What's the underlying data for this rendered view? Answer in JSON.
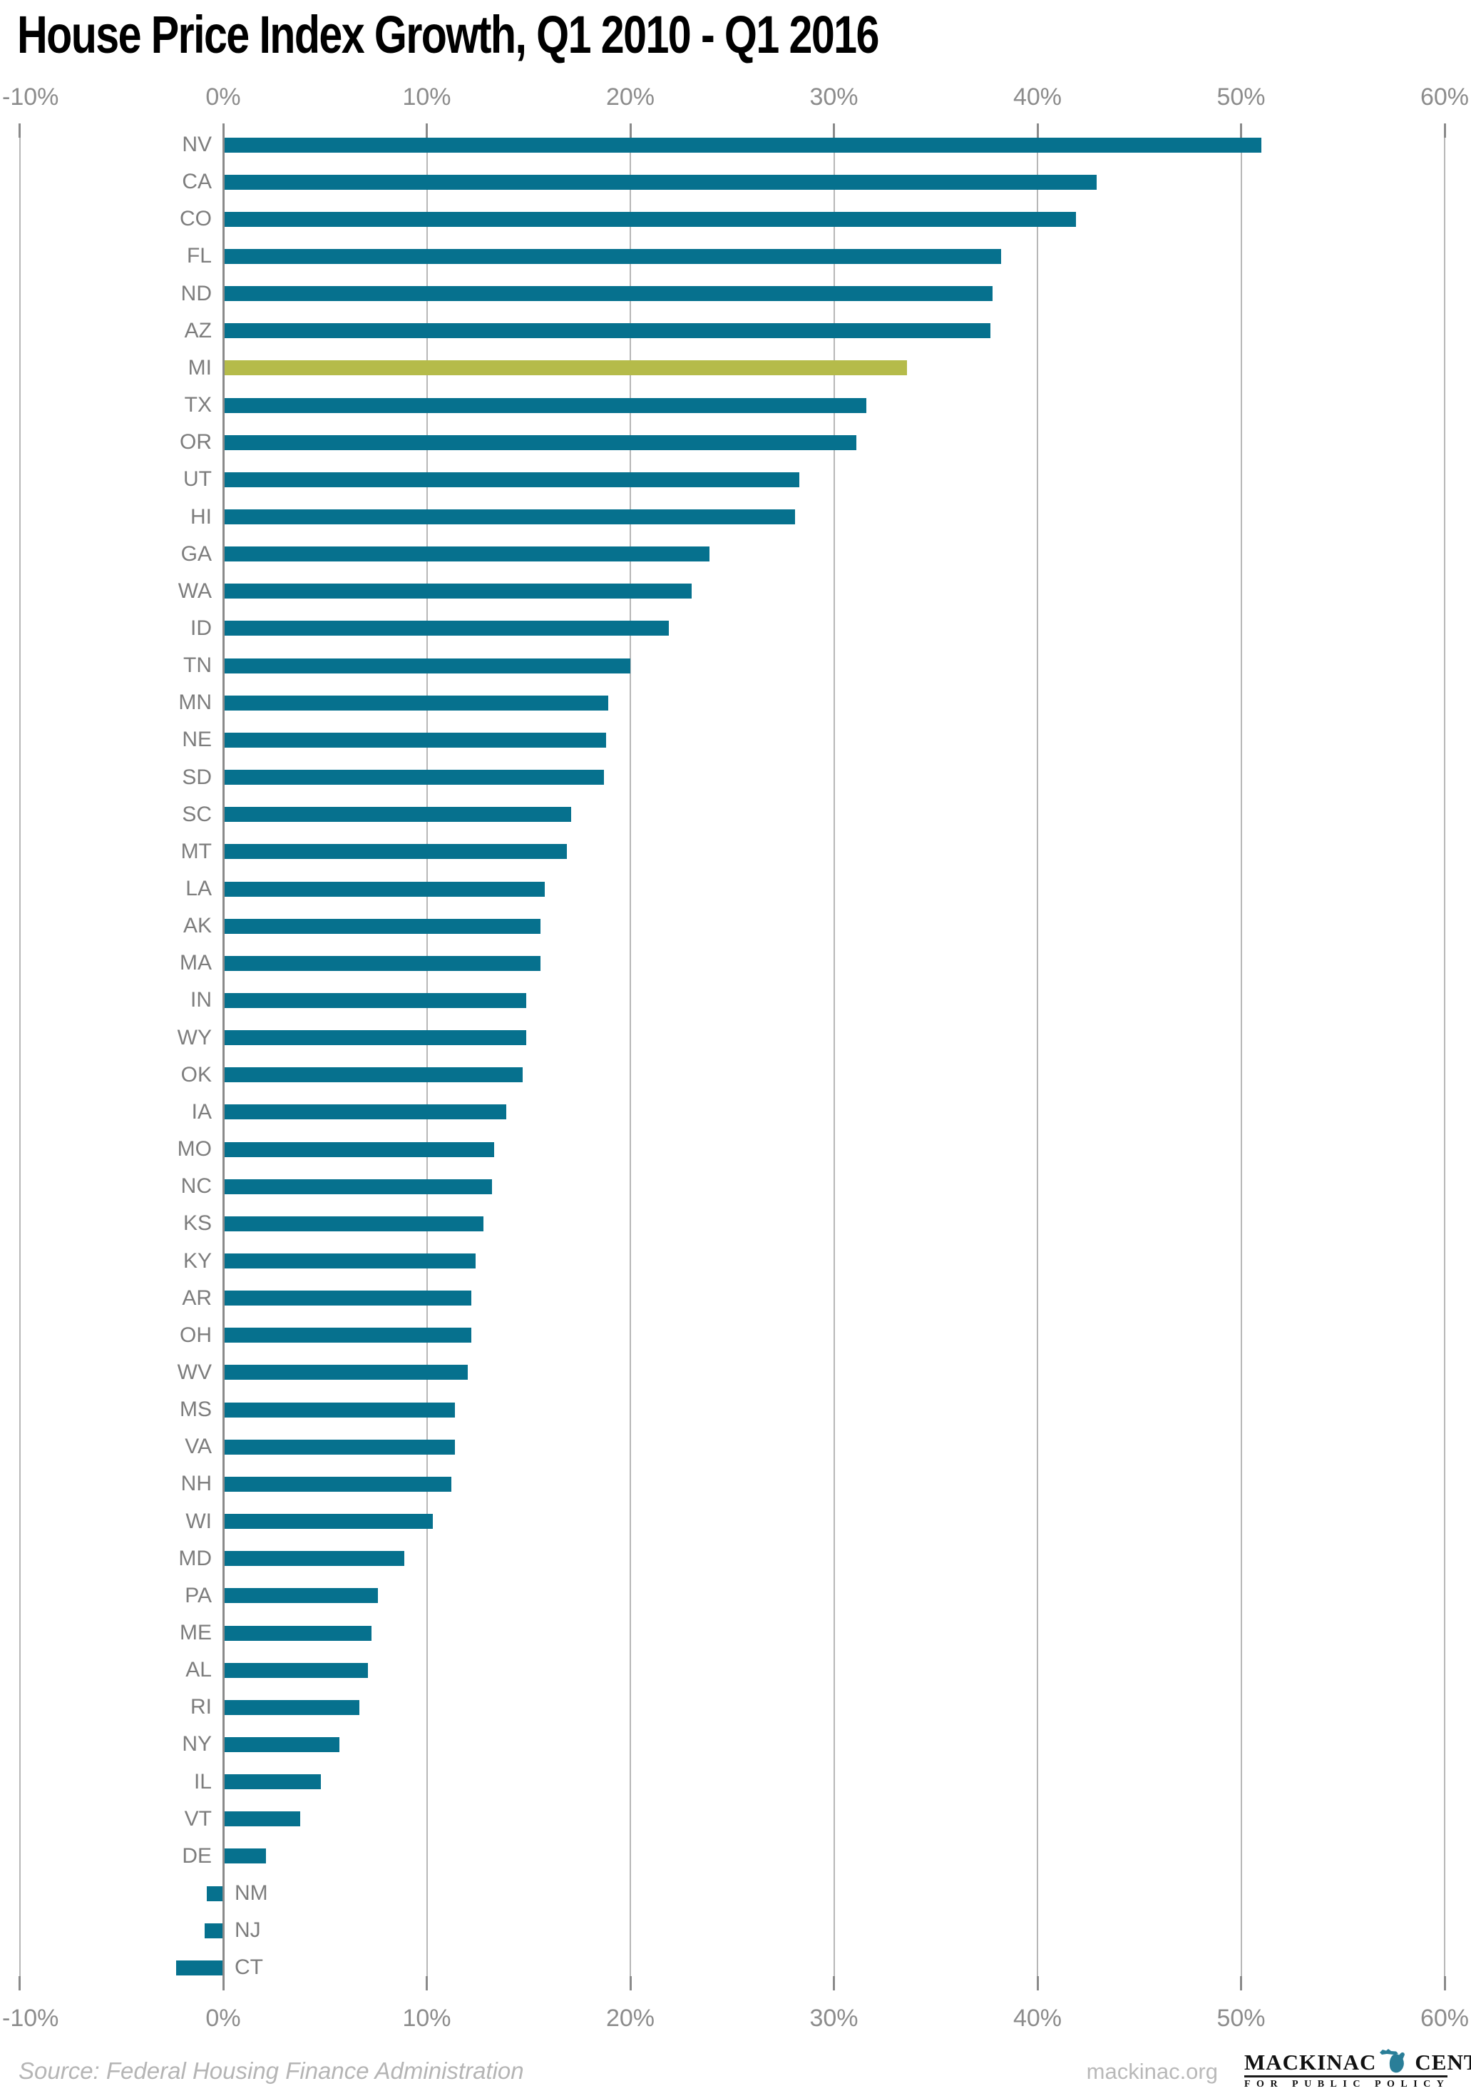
{
  "title": "House Price Index Growth, Q1 2010 - Q1 2016",
  "footer": {
    "source": "Source: Federal Housing Finance Administration",
    "site": "mackinac.org",
    "logo": {
      "word_left": "MACKINAC",
      "word_right": "CENTER",
      "tagline": "FOR PUBLIC POLICY",
      "icon": "michigan-mitten-icon"
    }
  },
  "colors": {
    "bar": "#06718E",
    "highlight_bar": "#B5BB4A",
    "gridline": "#b7b7b7",
    "axis": "#8a8a8a",
    "tick_label": "#8c8c8c",
    "state_label": "#7d7d7d",
    "footer_text": "#b5b5b5",
    "logo_icon": "#2A7E98"
  },
  "chart_data": {
    "type": "bar",
    "orientation": "horizontal",
    "title": "House Price Index Growth, Q1 2010 - Q1 2016",
    "unit": "%",
    "xlim": [
      -10,
      60
    ],
    "xticks": [
      -10,
      0,
      10,
      20,
      30,
      40,
      50,
      60
    ],
    "xtick_labels": [
      "-10%",
      "0%",
      "10%",
      "20%",
      "30%",
      "40%",
      "50%",
      "60%"
    ],
    "grid": true,
    "legend": false,
    "highlight_category": "MI",
    "categories": [
      "NV",
      "CA",
      "CO",
      "FL",
      "ND",
      "AZ",
      "MI",
      "TX",
      "OR",
      "UT",
      "HI",
      "GA",
      "WA",
      "ID",
      "TN",
      "MN",
      "NE",
      "SD",
      "SC",
      "MT",
      "LA",
      "AK",
      "MA",
      "IN",
      "WY",
      "OK",
      "IA",
      "MO",
      "NC",
      "KS",
      "KY",
      "AR",
      "OH",
      "WV",
      "MS",
      "VA",
      "NH",
      "WI",
      "MD",
      "PA",
      "ME",
      "AL",
      "RI",
      "NY",
      "IL",
      "VT",
      "DE",
      "NM",
      "NJ",
      "CT"
    ],
    "values": [
      51.0,
      42.9,
      41.9,
      38.2,
      37.8,
      37.7,
      33.6,
      31.6,
      31.1,
      28.3,
      28.1,
      23.9,
      23.0,
      21.9,
      20.0,
      18.9,
      18.8,
      18.7,
      17.1,
      16.9,
      15.8,
      15.6,
      15.6,
      14.9,
      14.9,
      14.7,
      13.9,
      13.3,
      13.2,
      12.8,
      12.4,
      12.2,
      12.2,
      12.0,
      11.4,
      11.4,
      11.2,
      10.3,
      8.9,
      7.6,
      7.3,
      7.1,
      6.7,
      5.7,
      4.8,
      3.8,
      2.1,
      -0.8,
      -0.9,
      -2.3
    ]
  }
}
